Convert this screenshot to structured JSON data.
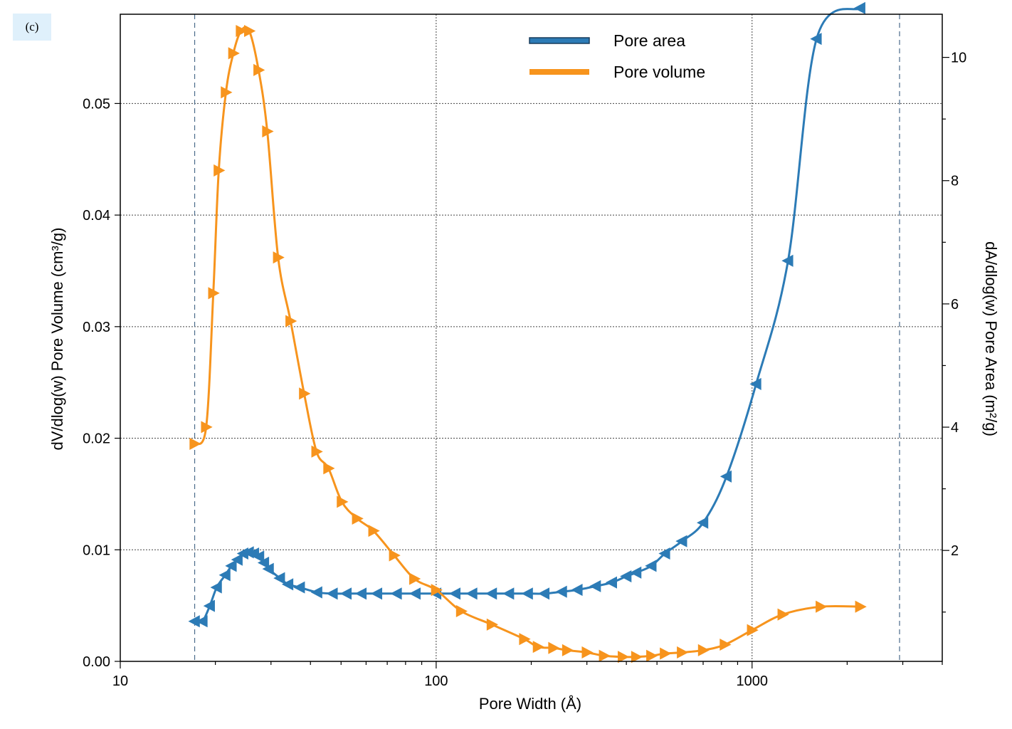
{
  "panel_label": "(c)",
  "colors": {
    "area": "#2c7bb6",
    "area_dark": "#1a3d5c",
    "volume": "#f7941d"
  },
  "chart_data": {
    "type": "line",
    "xlabel": "Pore Width (Å)",
    "ylabel_left": "dV/dlog(w) Pore Volume (cm³/g)",
    "ylabel_right": "dA/dlog(w) Pore Area (m²/g)",
    "x_scale": "log",
    "xlim": [
      10,
      4000
    ],
    "ylim_left": [
      0,
      0.058
    ],
    "ylim_right": [
      0.2,
      10.7
    ],
    "x_ticks": [
      {
        "v": 10,
        "label": "10"
      },
      {
        "v": 100,
        "label": "100"
      },
      {
        "v": 1000,
        "label": "1000"
      }
    ],
    "y_ticks_left": [
      {
        "v": 0.0,
        "label": "0.00"
      },
      {
        "v": 0.01,
        "label": "0.01"
      },
      {
        "v": 0.02,
        "label": "0.02"
      },
      {
        "v": 0.03,
        "label": "0.03"
      },
      {
        "v": 0.04,
        "label": "0.04"
      },
      {
        "v": 0.05,
        "label": "0.05"
      }
    ],
    "y_ticks_right": [
      {
        "v": 2,
        "label": "2"
      },
      {
        "v": 4,
        "label": "4"
      },
      {
        "v": 6,
        "label": "6"
      },
      {
        "v": 8,
        "label": "8"
      },
      {
        "v": 10,
        "label": "10"
      }
    ],
    "grid": true,
    "reference_lines_x": [
      17.2,
      2930
    ],
    "legend_position": "top-center",
    "series": [
      {
        "name": "Pore area",
        "axis": "right",
        "color_key": "area",
        "marker": "triangle-left",
        "x": [
          17.2,
          18.2,
          19.2,
          20.2,
          21.5,
          22.5,
          23.5,
          24.5,
          25.5,
          26.5,
          27.5,
          28.5,
          29.5,
          32,
          34,
          37,
          42,
          47,
          52,
          58,
          65,
          75,
          86,
          100,
          115,
          130,
          150,
          170,
          195,
          220,
          250,
          280,
          320,
          360,
          400,
          430,
          480,
          530,
          600,
          700,
          830,
          1030,
          1300,
          1600,
          2200
        ],
        "y": [
          0.85,
          0.85,
          1.1,
          1.4,
          1.6,
          1.75,
          1.85,
          1.95,
          1.97,
          1.95,
          1.9,
          1.8,
          1.7,
          1.55,
          1.45,
          1.4,
          1.32,
          1.3,
          1.3,
          1.3,
          1.3,
          1.3,
          1.3,
          1.3,
          1.3,
          1.3,
          1.3,
          1.3,
          1.3,
          1.3,
          1.33,
          1.36,
          1.42,
          1.48,
          1.58,
          1.64,
          1.75,
          1.95,
          2.15,
          2.45,
          3.2,
          4.7,
          6.7,
          10.3,
          10.8
        ]
      },
      {
        "name": "Pore volume",
        "axis": "left",
        "color_key": "volume",
        "marker": "triangle-right",
        "x": [
          17.2,
          18.7,
          19.7,
          20.5,
          21.6,
          22.8,
          24.1,
          25.6,
          27.4,
          29.2,
          31.6,
          34.6,
          38.2,
          41.8,
          45.6,
          50.3,
          56.2,
          63.3,
          73.6,
          85.3,
          100,
          120,
          150,
          190,
          210,
          235,
          260,
          300,
          340,
          390,
          430,
          480,
          530,
          600,
          700,
          820,
          1000,
          1250,
          1650,
          2200
        ],
        "y": [
          0.0195,
          0.021,
          0.033,
          0.044,
          0.051,
          0.0545,
          0.0565,
          0.0565,
          0.053,
          0.0475,
          0.0362,
          0.0305,
          0.024,
          0.0188,
          0.0173,
          0.0143,
          0.0128,
          0.0117,
          0.0095,
          0.0074,
          0.0064,
          0.0045,
          0.0033,
          0.002,
          0.0013,
          0.0012,
          0.001,
          0.0008,
          0.0005,
          0.0004,
          0.0004,
          0.0005,
          0.0007,
          0.0008,
          0.001,
          0.0015,
          0.0028,
          0.0042,
          0.0049,
          0.0049
        ]
      }
    ]
  }
}
